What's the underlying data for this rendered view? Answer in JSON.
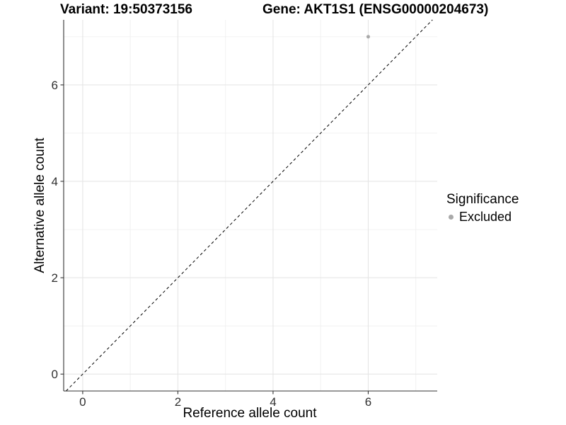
{
  "chart_data": {
    "type": "scatter",
    "titles": [
      "Variant: 19:50373156",
      "Gene: AKT1S1 (ENSG00000204673)"
    ],
    "xlabel": "Reference allele count",
    "ylabel": "Alternative allele count",
    "xlim": [
      -0.4,
      7.45
    ],
    "ylim": [
      -0.35,
      7.35
    ],
    "x_ticks": [
      0,
      2,
      4,
      6
    ],
    "y_ticks": [
      0,
      2,
      4,
      6
    ],
    "x_minor_gridlines": [
      1,
      3,
      5,
      7
    ],
    "y_minor_gridlines": [
      1,
      3,
      5,
      7
    ],
    "grid": "major+minor",
    "legend_position": "right",
    "points": [
      {
        "x": 6,
        "y": 7,
        "series": "Excluded"
      }
    ],
    "identity_line": {
      "slope": 1,
      "intercept": 0,
      "style": "dashed"
    },
    "legend": {
      "title": "Significance",
      "items": [
        {
          "label": "Excluded",
          "marker": "circle",
          "color": "#a9a9a9"
        }
      ]
    },
    "colors": {
      "point": "#a9a9a9",
      "identity_line": "#000000",
      "grid_major": "#e5e5e5",
      "grid_minor": "#f0f0f0",
      "axis_line": "#333333",
      "tick_text": "#303030",
      "text": "#000000",
      "background": "#ffffff"
    }
  }
}
